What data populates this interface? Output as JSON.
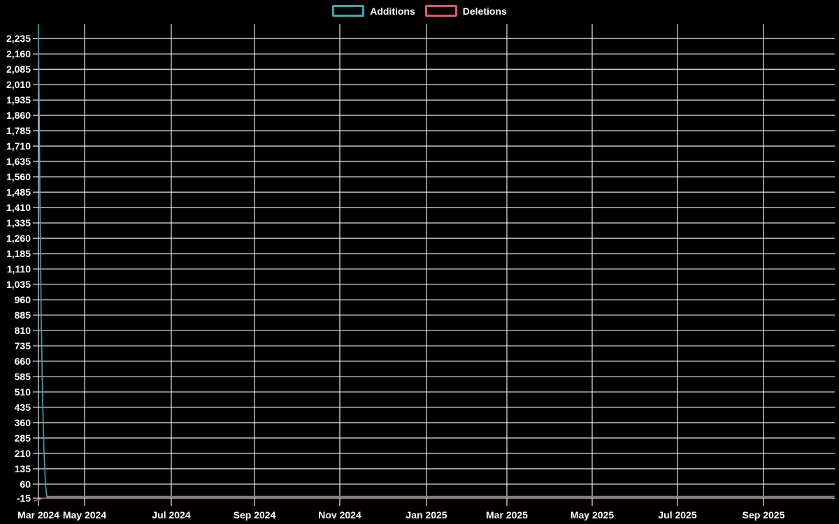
{
  "legend": {
    "items": [
      {
        "label": "Additions",
        "color": "#36abaf"
      },
      {
        "label": "Deletions",
        "color": "#e25566"
      }
    ]
  },
  "chart_data": {
    "type": "line",
    "title": "",
    "xlabel": "",
    "ylabel": "",
    "background_color": "#000000",
    "gridline_color": "#ffffff",
    "tick_label_color": "#ffffff",
    "grid": true,
    "legend_position": "top-center",
    "x_tick_labels": [
      "Mar 2024",
      "May 2024",
      "Jul 2024",
      "Sep 2024",
      "Nov 2024",
      "Jan 2025",
      "Mar 2025",
      "May 2025",
      "Jul 2025",
      "Sep 2025"
    ],
    "y_ticks": [
      -15,
      60,
      135,
      210,
      285,
      360,
      435,
      510,
      585,
      660,
      735,
      810,
      885,
      960,
      1035,
      1110,
      1185,
      1260,
      1335,
      1410,
      1485,
      1560,
      1635,
      1710,
      1785,
      1860,
      1935,
      2010,
      2085,
      2160,
      2235
    ],
    "ylim": [
      -15,
      2310
    ],
    "xlim": [
      "2024-03-30",
      "2025-10-19"
    ],
    "series": [
      {
        "name": "Additions",
        "color": "#36abaf",
        "points": [
          [
            "2024-03-30",
            2306
          ],
          [
            "2024-03-31",
            1500
          ],
          [
            "2024-04-01",
            860
          ],
          [
            "2024-04-02",
            460
          ],
          [
            "2024-04-03",
            215
          ],
          [
            "2024-04-04",
            60
          ],
          [
            "2024-04-05",
            0
          ],
          [
            "2025-10-19",
            0
          ]
        ]
      },
      {
        "name": "Deletions",
        "color": "#e25566",
        "points": [
          [
            "2024-03-30",
            -15
          ],
          [
            "2024-04-05",
            0
          ],
          [
            "2025-10-19",
            0
          ]
        ]
      }
    ]
  }
}
